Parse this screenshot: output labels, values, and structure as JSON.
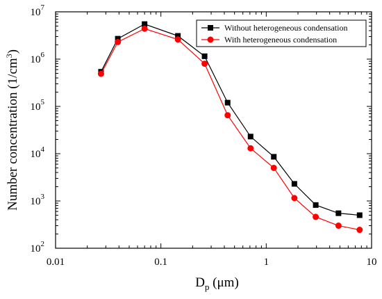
{
  "chart_data": {
    "type": "line",
    "xscale": "log",
    "yscale": "log",
    "xlim": [
      0.01,
      10
    ],
    "ylim": [
      100,
      10000000
    ],
    "xticks": [
      {
        "value": 0.01,
        "label": "0.01"
      },
      {
        "value": 0.1,
        "label": "0.1"
      },
      {
        "value": 1,
        "label": "1"
      },
      {
        "value": 10,
        "label": "10"
      }
    ],
    "yticks": [
      {
        "value": 100,
        "base": "10",
        "exp": "2"
      },
      {
        "value": 1000,
        "base": "10",
        "exp": "3"
      },
      {
        "value": 10000,
        "base": "10",
        "exp": "4"
      },
      {
        "value": 100000,
        "base": "10",
        "exp": "5"
      },
      {
        "value": 1000000,
        "base": "10",
        "exp": "6"
      },
      {
        "value": 10000000,
        "base": "10",
        "exp": "7"
      }
    ],
    "xlabel": {
      "main": "D",
      "sub": "p",
      "unit": " (μm)"
    },
    "ylabel": {
      "main": "Number concentration (1/cm",
      "sup": "3",
      "end": ")"
    },
    "legend_position": "top-right",
    "grid": false,
    "x": [
      0.027,
      0.039,
      0.07,
      0.145,
      0.26,
      0.43,
      0.71,
      1.18,
      1.85,
      2.95,
      4.85,
      7.7
    ],
    "series": [
      {
        "name": "Without heterogeneous condensation",
        "color": "#000000",
        "marker": "square",
        "values": [
          540000,
          2700000,
          5500000,
          3100000,
          1150000,
          120000,
          23000,
          8600,
          2300,
          820,
          550,
          500
        ]
      },
      {
        "name": "With heterogeneous condensation",
        "color": "#ff0000",
        "marker": "circle",
        "values": [
          490000,
          2300000,
          4400000,
          2600000,
          800000,
          65000,
          13000,
          5000,
          1150,
          460,
          300,
          245
        ]
      }
    ]
  }
}
